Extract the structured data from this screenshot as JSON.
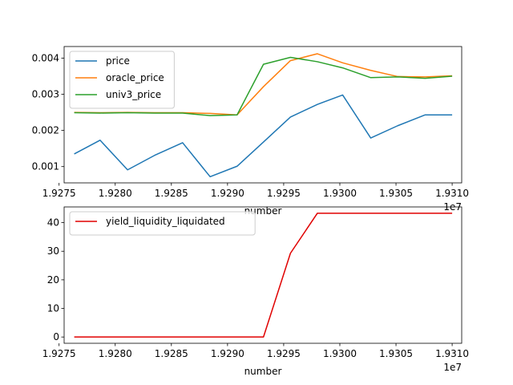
{
  "chart_data": [
    {
      "type": "line",
      "title": "",
      "xlabel": "number",
      "ylabel": "",
      "x_offset_label": "1e7",
      "x": [
        19276350,
        19278650,
        19281100,
        19283500,
        19286000,
        19288450,
        19290850,
        19293200,
        19295600,
        19298000,
        19300250,
        19302750,
        19305150,
        19307600,
        19310000
      ],
      "xlim": [
        19275450,
        19310850
      ],
      "ylim": [
        0.00055,
        0.00432
      ],
      "x_ticks": [
        19275000,
        19280000,
        19285000,
        19290000,
        19295000,
        19300000,
        19305000,
        19310000
      ],
      "x_tick_labels": [
        "1.9275",
        "1.9280",
        "1.9285",
        "1.9290",
        "1.9295",
        "1.9300",
        "1.9305",
        "1.9310"
      ],
      "y_ticks": [
        0.001,
        0.002,
        0.003,
        0.004
      ],
      "y_tick_labels": [
        "0.001",
        "0.002",
        "0.003",
        "0.004"
      ],
      "grid": false,
      "legend_position": "upper-left",
      "series": [
        {
          "name": "price",
          "color": "#1f77b4",
          "values": [
            0.00135,
            0.00173,
            0.00091,
            0.00131,
            0.00166,
            0.00072,
            0.00101,
            0.00168,
            0.00237,
            0.00272,
            0.00298,
            0.00179,
            0.00213,
            0.00243,
            0.00243
          ]
        },
        {
          "name": "oracle_price",
          "color": "#ff7f0e",
          "values": [
            0.0025,
            0.00249,
            0.0025,
            0.00249,
            0.00249,
            0.00247,
            0.00243,
            0.00321,
            0.00393,
            0.00412,
            0.00387,
            0.00366,
            0.00349,
            0.00348,
            0.00351
          ]
        },
        {
          "name": "univ3_price",
          "color": "#2ca02c",
          "values": [
            0.00249,
            0.00248,
            0.00249,
            0.00248,
            0.00248,
            0.00241,
            0.00243,
            0.00383,
            0.00402,
            0.0039,
            0.00373,
            0.00346,
            0.00348,
            0.00344,
            0.0035
          ]
        }
      ]
    },
    {
      "type": "line",
      "title": "",
      "xlabel": "number",
      "ylabel": "",
      "x_offset_label": "1e7",
      "x": [
        19276350,
        19278650,
        19281100,
        19283500,
        19286000,
        19288450,
        19290850,
        19293200,
        19295600,
        19298000,
        19300250,
        19302750,
        19305150,
        19307600,
        19310000
      ],
      "xlim": [
        19275450,
        19310850
      ],
      "ylim": [
        -2.2,
        45.5
      ],
      "x_ticks": [
        19275000,
        19280000,
        19285000,
        19290000,
        19295000,
        19300000,
        19305000,
        19310000
      ],
      "x_tick_labels": [
        "1.9275",
        "1.9280",
        "1.9285",
        "1.9290",
        "1.9295",
        "1.9300",
        "1.9305",
        "1.9310"
      ],
      "y_ticks": [
        0,
        10,
        20,
        30,
        40
      ],
      "y_tick_labels": [
        "0",
        "10",
        "20",
        "30",
        "40"
      ],
      "grid": false,
      "legend_position": "upper-left",
      "series": [
        {
          "name": "yield_liquidity_liquidated",
          "color": "#e00000",
          "values": [
            0,
            0,
            0,
            0,
            0,
            0,
            0,
            0,
            29.3,
            43.3,
            43.3,
            43.3,
            43.3,
            43.3,
            43.3
          ]
        }
      ]
    }
  ]
}
